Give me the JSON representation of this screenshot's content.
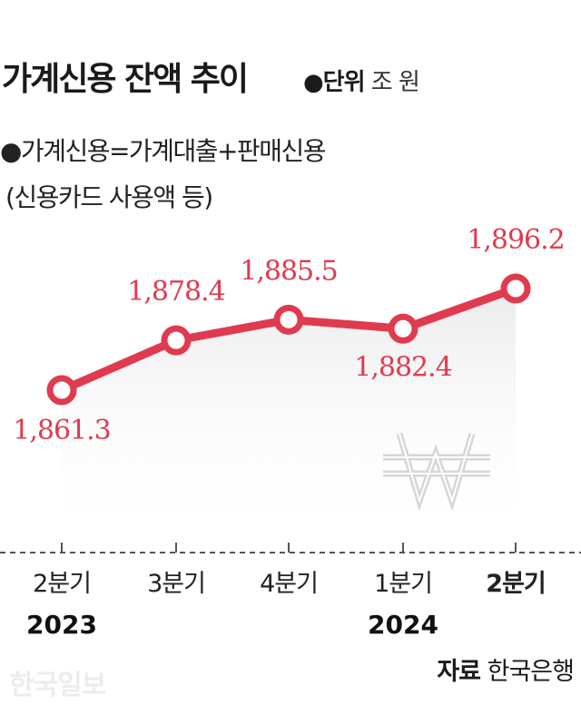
{
  "chart_data": {
    "type": "line",
    "title": "가계신용 잔액 추이",
    "unit_label": "●단위",
    "unit_value": "조 원",
    "notes": [
      "●가계신용=가계대출+판매신용",
      "(신용카드 사용액 등)"
    ],
    "categories": [
      "2분기",
      "3분기",
      "4분기",
      "1분기",
      "2분기"
    ],
    "years": [
      "2023",
      "",
      "",
      "2024",
      ""
    ],
    "values": [
      1861.3,
      1878.4,
      1885.5,
      1882.4,
      1896.2
    ],
    "value_labels": [
      "1,861.3",
      "1,878.4",
      "1,885.5",
      "1,882.4",
      "1,896.2"
    ],
    "bold_category_index": 4,
    "ylim": [
      1855,
      1900
    ],
    "line_color": "#e03a4f",
    "grid": false,
    "legend": "none"
  },
  "source": {
    "label": "자료",
    "value": "한국은행"
  },
  "watermark": "한국일보"
}
